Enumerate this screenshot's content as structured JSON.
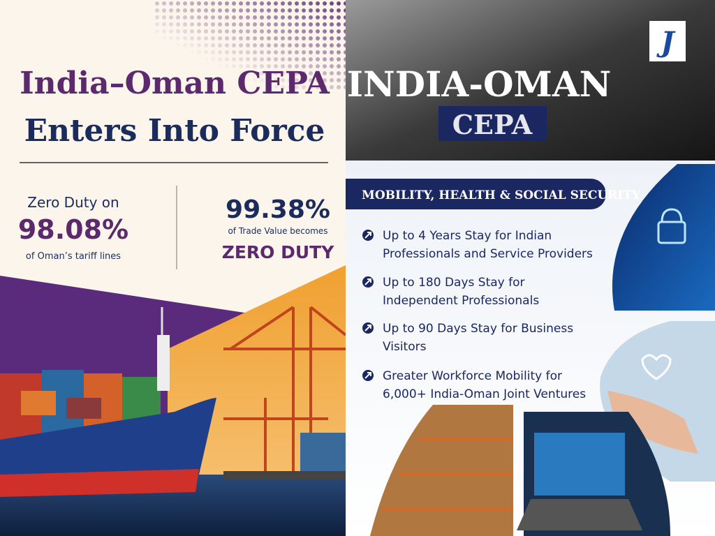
{
  "left": {
    "title_line1": "India–Oman CEPA",
    "title_line2": "Enters Into Force",
    "stat1": {
      "lead": "Zero Duty on",
      "value": "98.08%",
      "caption": "of Oman’s tariff lines"
    },
    "stat2": {
      "value": "99.38%",
      "caption": "of Trade Value becomes",
      "tail": "ZERO DUTY"
    }
  },
  "right": {
    "logo": "J",
    "title": "INDIA-OMAN",
    "subtitle": "CEPA",
    "banner": "MOBILITY, HEALTH & SOCIAL SECURITY",
    "bullets": [
      [
        "Up to 4 Years Stay for Indian",
        "Professionals and Service Providers"
      ],
      [
        "Up to 180 Days Stay for",
        "Independent Professionals"
      ],
      [
        "Up to 90 Days Stay for Business",
        "Visitors"
      ],
      [
        "Greater Workforce Mobility for",
        "6,000+ India-Oman Joint Ventures"
      ]
    ]
  }
}
